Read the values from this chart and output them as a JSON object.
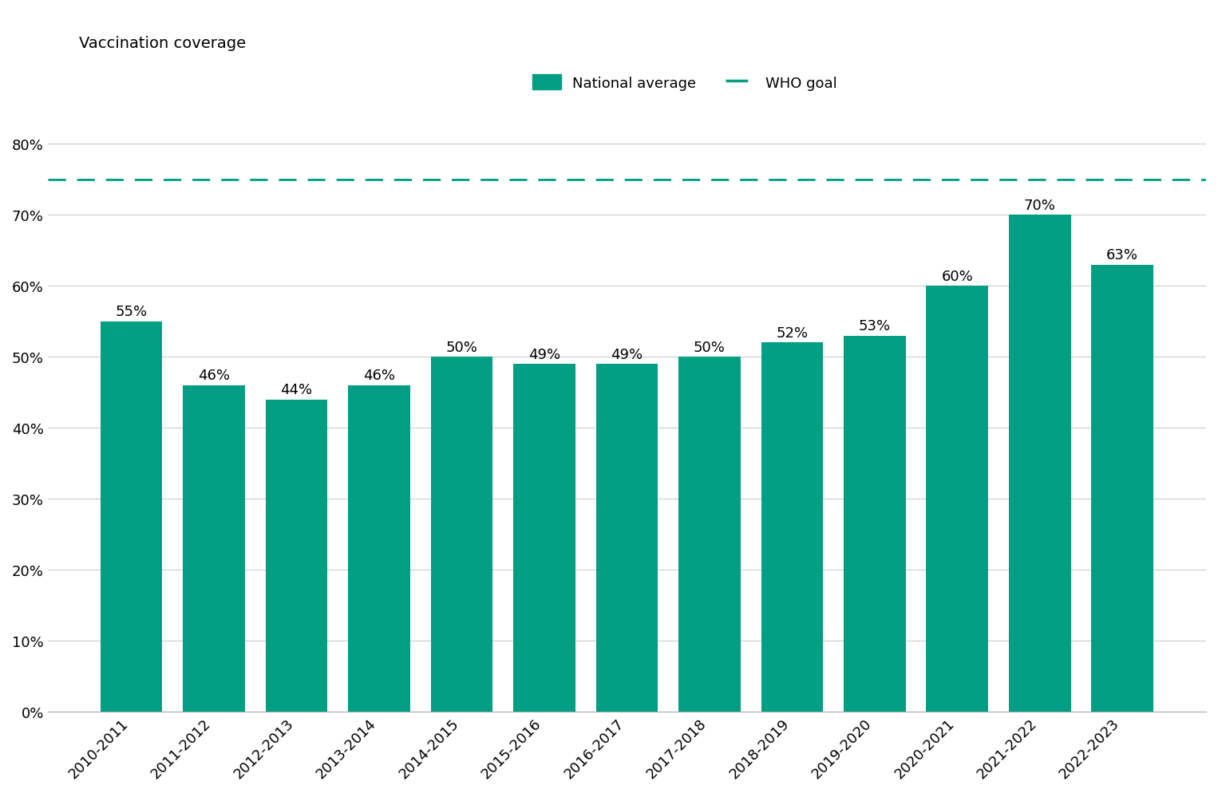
{
  "categories": [
    "2010-2011",
    "2011-2012",
    "2012-2013",
    "2013-2014",
    "2014-2015",
    "2015-2016",
    "2016-2017",
    "2017-2018",
    "2018-2019",
    "2019-2020",
    "2020-2021",
    "2021-2022",
    "2022-2023"
  ],
  "values": [
    0.55,
    0.46,
    0.44,
    0.46,
    0.5,
    0.49,
    0.49,
    0.5,
    0.52,
    0.53,
    0.6,
    0.7,
    0.63
  ],
  "bar_color": "#009E82",
  "who_goal": 0.75,
  "who_goal_color": "#009E82",
  "axis_label": "Vaccination coverage",
  "yticks": [
    0.0,
    0.1,
    0.2,
    0.3,
    0.4,
    0.5,
    0.6,
    0.7,
    0.8
  ],
  "ytick_labels": [
    "0%",
    "10%",
    "20%",
    "30%",
    "40%",
    "50%",
    "60%",
    "70%",
    "80%"
  ],
  "ylim": [
    0,
    0.85
  ],
  "legend_national": "National average",
  "legend_who": "WHO goal",
  "background_color": "#ffffff",
  "grid_color": "#cccccc",
  "bar_labels": [
    "55%",
    "46%",
    "44%",
    "46%",
    "50%",
    "49%",
    "49%",
    "50%",
    "52%",
    "53%",
    "60%",
    "70%",
    "63%"
  ],
  "label_fontsize": 13,
  "tick_fontsize": 13,
  "axis_label_fontsize": 14,
  "legend_fontsize": 13,
  "bar_width": 0.75
}
